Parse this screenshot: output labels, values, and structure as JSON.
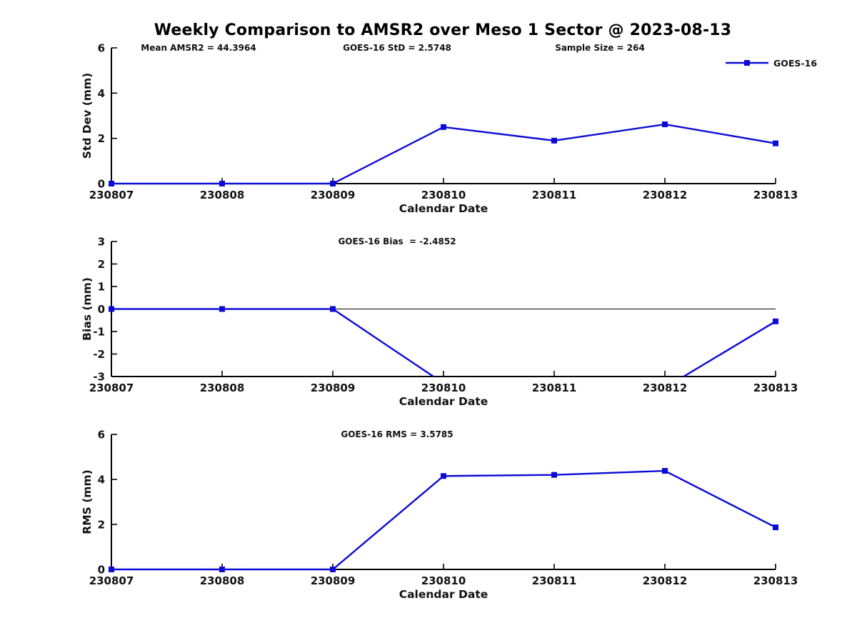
{
  "figure": {
    "title": "Weekly Comparison to AMSR2 over Meso 1 Sector @ 2023-08-13"
  },
  "legend": {
    "label": "GOES-16",
    "position": "top-right"
  },
  "style": {
    "line_color": "#0b0bd6",
    "axis_color": "#000000",
    "text_color": "#111111",
    "background": "#ffffff"
  },
  "chart_data": [
    {
      "id": "std-dev",
      "type": "line",
      "title": "",
      "xlabel": "Calendar Date",
      "ylabel": "Std Dev (mm)",
      "categories": [
        "230807",
        "230808",
        "230809",
        "230810",
        "230811",
        "230812",
        "230813"
      ],
      "ylim": [
        0,
        6
      ],
      "yticks": [
        0,
        2,
        4,
        6
      ],
      "grid": false,
      "zero_line": false,
      "clip_to_axis": false,
      "annotations": [
        {
          "text": "Mean AMSR2 = 44.3964"
        },
        {
          "text": "GOES-16 StD = 2.5748"
        },
        {
          "text": "Sample Size = 264"
        }
      ],
      "series": [
        {
          "name": "GOES-16",
          "marker": "square",
          "values": [
            0,
            0,
            0,
            2.5,
            1.9,
            2.62,
            1.78
          ]
        }
      ]
    },
    {
      "id": "bias",
      "type": "line",
      "title": "",
      "xlabel": "Calendar Date",
      "ylabel": "Bias (mm)",
      "categories": [
        "230807",
        "230808",
        "230809",
        "230810",
        "230811",
        "230812",
        "230813"
      ],
      "ylim": [
        -3,
        3
      ],
      "yticks": [
        -3,
        -2,
        -1,
        0,
        1,
        2,
        3
      ],
      "grid": false,
      "zero_line": true,
      "clip_to_axis": true,
      "annotations": [
        {
          "text": "GOES-16 Bias  = -2.4852"
        }
      ],
      "series": [
        {
          "name": "GOES-16",
          "marker": "square",
          "values": [
            0,
            0,
            0,
            -3.3,
            -3.75,
            -3.5,
            -0.55
          ]
        }
      ]
    },
    {
      "id": "rms",
      "type": "line",
      "title": "",
      "xlabel": "Calendar Date",
      "ylabel": "RMS (mm)",
      "categories": [
        "230807",
        "230808",
        "230809",
        "230810",
        "230811",
        "230812",
        "230813"
      ],
      "ylim": [
        0,
        6
      ],
      "yticks": [
        0,
        2,
        4,
        6
      ],
      "grid": false,
      "zero_line": false,
      "clip_to_axis": false,
      "annotations": [
        {
          "text": "GOES-16 RMS = 3.5785"
        }
      ],
      "series": [
        {
          "name": "GOES-16",
          "marker": "square",
          "values": [
            0,
            0,
            0,
            4.15,
            4.2,
            4.38,
            1.87
          ]
        }
      ]
    }
  ]
}
